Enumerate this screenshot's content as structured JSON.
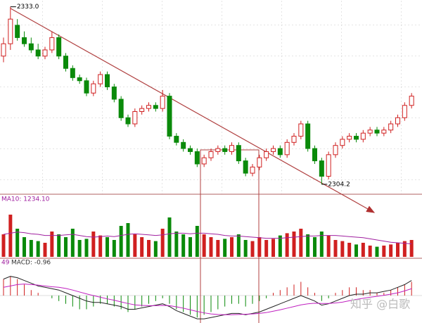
{
  "chart_data": {
    "type": "candlestick",
    "candles": [
      [
        2325,
        2328,
        2324,
        2327
      ],
      [
        2327,
        2333,
        2326,
        2331
      ],
      [
        2330,
        2331,
        2327.5,
        2328
      ],
      [
        2328,
        2329,
        2326.5,
        2327
      ],
      [
        2327,
        2328,
        2325.5,
        2326
      ],
      [
        2326,
        2327,
        2324.5,
        2325
      ],
      [
        2325,
        2326.5,
        2324.5,
        2326
      ],
      [
        2326,
        2329,
        2325.5,
        2328
      ],
      [
        2328,
        2328.5,
        2324.5,
        2325
      ],
      [
        2325,
        2325.5,
        2322.5,
        2323
      ],
      [
        2323,
        2323.5,
        2321,
        2321.5
      ],
      [
        2321.5,
        2322,
        2320.5,
        2321
      ],
      [
        2321,
        2321.5,
        2318.5,
        2319
      ],
      [
        2319,
        2321,
        2318.5,
        2320.5
      ],
      [
        2320.5,
        2322.5,
        2320,
        2322
      ],
      [
        2322,
        2322.5,
        2319.5,
        2320
      ],
      [
        2320,
        2320.5,
        2317.5,
        2318
      ],
      [
        2318,
        2318.5,
        2314.5,
        2315
      ],
      [
        2315,
        2315.5,
        2313.5,
        2314
      ],
      [
        2314,
        2316.5,
        2313.5,
        2316
      ],
      [
        2316,
        2317,
        2315.5,
        2316.5
      ],
      [
        2316.5,
        2317.5,
        2316,
        2317
      ],
      [
        2317,
        2317.5,
        2316,
        2316.5
      ],
      [
        2316.5,
        2319.5,
        2316,
        2318.5
      ],
      [
        2318.5,
        2319,
        2311.5,
        2312
      ],
      [
        2312,
        2312.5,
        2310.5,
        2311
      ],
      [
        2311,
        2311.5,
        2309.5,
        2310
      ],
      [
        2310,
        2310.5,
        2309,
        2309.5
      ],
      [
        2309.5,
        2310,
        2307,
        2307.5
      ],
      [
        2307.5,
        2309,
        2307,
        2308.5
      ],
      [
        2308.5,
        2310,
        2308,
        2309.5
      ],
      [
        2309.5,
        2310.5,
        2309,
        2310
      ],
      [
        2310,
        2310.5,
        2309,
        2309.5
      ],
      [
        2309.5,
        2311,
        2309,
        2310.5
      ],
      [
        2310.5,
        2311,
        2307.5,
        2308
      ],
      [
        2308,
        2308.5,
        2305.5,
        2306
      ],
      [
        2306,
        2307.5,
        2305.5,
        2307
      ],
      [
        2307,
        2309,
        2306.5,
        2308.5
      ],
      [
        2308.5,
        2310,
        2308,
        2309.5
      ],
      [
        2309.5,
        2310.5,
        2309,
        2310
      ],
      [
        2310,
        2310.5,
        2308.5,
        2309
      ],
      [
        2309,
        2311.5,
        2308.5,
        2311
      ],
      [
        2311,
        2312.5,
        2310.5,
        2312
      ],
      [
        2312,
        2314.5,
        2311.5,
        2314
      ],
      [
        2314,
        2314.5,
        2309.5,
        2310
      ],
      [
        2310,
        2310.5,
        2307.5,
        2308
      ],
      [
        2308,
        2308.5,
        2304.2,
        2305.5
      ],
      [
        2305.5,
        2309.5,
        2305,
        2309
      ],
      [
        2309,
        2311,
        2308.5,
        2310.5
      ],
      [
        2310.5,
        2312,
        2310,
        2311.5
      ],
      [
        2311.5,
        2312.5,
        2311,
        2312
      ],
      [
        2312,
        2312.5,
        2311,
        2311.5
      ],
      [
        2311.5,
        2313,
        2311,
        2312.5
      ],
      [
        2312.5,
        2313.5,
        2312,
        2313
      ],
      [
        2313,
        2313.5,
        2312,
        2312.5
      ],
      [
        2312.5,
        2313.5,
        2312,
        2313
      ],
      [
        2313,
        2314.5,
        2312.5,
        2314
      ],
      [
        2314,
        2315.5,
        2313.5,
        2315
      ],
      [
        2315,
        2317.5,
        2314.5,
        2317
      ],
      [
        2317,
        2319,
        2316.5,
        2318.5
      ]
    ],
    "ylim": [
      2302.7,
      2334.1
    ],
    "high_label": {
      "value": 2333,
      "label": "2333.0"
    },
    "low_label": {
      "value": 2304.2,
      "label": "2304.2"
    },
    "up_color": "#d02020",
    "down_color": "#0a8a0a",
    "volume": [
      40,
      75,
      50,
      35,
      30,
      28,
      25,
      45,
      40,
      35,
      50,
      30,
      32,
      45,
      38,
      35,
      30,
      55,
      60,
      40,
      35,
      30,
      28,
      50,
      70,
      45,
      40,
      35,
      55,
      40,
      35,
      30,
      32,
      35,
      40,
      30,
      28,
      35,
      30,
      32,
      38,
      42,
      45,
      50,
      40,
      35,
      45,
      38,
      30,
      28,
      25,
      22,
      25,
      20,
      18,
      20,
      22,
      25,
      28,
      30
    ],
    "volume_ma": [
      40,
      42,
      44,
      43,
      41,
      40,
      38,
      38,
      38,
      39,
      40,
      38,
      36,
      35,
      36,
      37,
      36,
      38,
      40,
      41,
      40,
      39,
      38,
      39,
      41,
      42,
      42,
      41,
      42,
      42,
      41,
      40,
      38,
      37,
      37,
      36,
      35,
      34,
      33,
      33,
      33,
      34,
      35,
      36,
      37,
      37,
      38,
      38,
      38,
      37,
      36,
      35,
      34,
      32,
      30,
      28,
      26,
      25,
      24,
      23
    ],
    "volume_ma_color": "#a020a0",
    "vlim": [
      0,
      100
    ],
    "volume_label": "MA10: 1234.10",
    "macd_period_label": "49",
    "macd_label": "MACD: -0.96",
    "macd_hist": [
      6,
      7,
      6,
      4,
      2,
      1,
      0,
      -1,
      -2,
      -3,
      -4,
      -5,
      -5,
      -4,
      -3,
      -3,
      -4,
      -5,
      -6,
      -5,
      -4,
      -3,
      -2,
      -1,
      -3,
      -5,
      -6,
      -7,
      -8,
      -7,
      -6,
      -5,
      -4,
      -3,
      -3,
      -4,
      -3,
      -2,
      -1,
      1,
      2,
      3,
      4,
      5,
      3,
      1,
      -2,
      -1,
      1,
      2,
      3,
      3,
      2,
      2,
      1,
      1,
      2,
      3,
      4,
      5
    ],
    "macd_dif": [
      6,
      7,
      6.5,
      5.5,
      4.5,
      3.5,
      3,
      2.5,
      2,
      1,
      0,
      -1,
      -2,
      -2.5,
      -2.5,
      -3,
      -3.5,
      -4,
      -5,
      -5,
      -4.5,
      -4,
      -3.5,
      -3,
      -4,
      -5.5,
      -6.5,
      -7.5,
      -8.5,
      -8.5,
      -8,
      -7.5,
      -7,
      -6.5,
      -6.5,
      -7,
      -6.5,
      -6,
      -5,
      -4,
      -3,
      -2,
      -1,
      0,
      -1,
      -2,
      -3.5,
      -3,
      -2,
      -1,
      0,
      0.5,
      0.5,
      1,
      1,
      1.5,
      2,
      3,
      4,
      5.5
    ],
    "macd_dea": [
      3,
      3.5,
      4,
      4.2,
      4,
      3.8,
      3.5,
      3.2,
      3,
      2.6,
      2,
      1.3,
      0.6,
      0,
      -0.6,
      -1.2,
      -1.7,
      -2.3,
      -2.9,
      -3.4,
      -3.6,
      -3.7,
      -3.7,
      -3.6,
      -3.7,
      -4.1,
      -4.6,
      -5.2,
      -5.8,
      -6.3,
      -6.7,
      -6.9,
      -7,
      -7,
      -6.9,
      -6.8,
      -6.7,
      -6.5,
      -6.2,
      -5.7,
      -5.2,
      -4.6,
      -4,
      -3.4,
      -3,
      -2.8,
      -2.9,
      -2.9,
      -2.7,
      -2.4,
      -1.9,
      -1.4,
      -1,
      -0.6,
      -0.3,
      0.1,
      0.5,
      1,
      1.7,
      2.5
    ],
    "macd_dif_color": "#222222",
    "macd_dea_color": "#c020c0",
    "mlim": [
      -10,
      10
    ],
    "watermark": "知乎 @白歌"
  }
}
